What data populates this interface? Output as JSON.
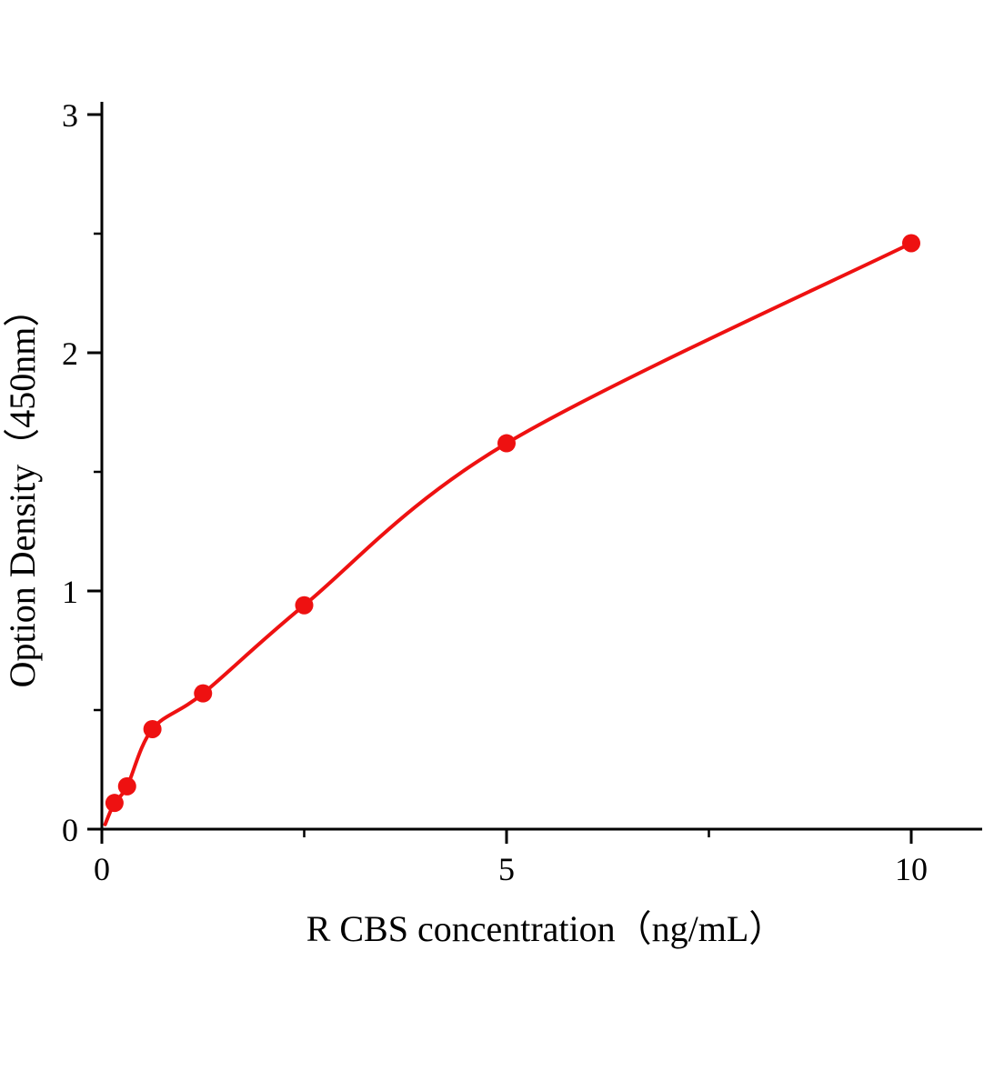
{
  "page": {
    "background": "#ffffff"
  },
  "chart_data": {
    "type": "scatter",
    "title": "",
    "xlabel": "R CBS  concentration（ng/mL）",
    "ylabel": "Option Density（450nm）",
    "x": [
      0.156,
      0.312,
      0.625,
      1.25,
      2.5,
      5,
      10
    ],
    "y": [
      0.11,
      0.18,
      0.42,
      0.57,
      0.94,
      1.62,
      2.46
    ],
    "curve_start": [
      0.04,
      0.02
    ],
    "xlim": [
      0,
      10.9
    ],
    "ylim": [
      0,
      3
    ],
    "x_major_ticks": [
      0,
      5,
      10
    ],
    "x_minor_ticks": [
      2.5,
      7.5
    ],
    "y_major_ticks": [
      0,
      1,
      2,
      3
    ],
    "y_minor_ticks": [
      0.5,
      1.5,
      2.5
    ],
    "legend": "none",
    "grid": "off",
    "accent_color": "#ee1111",
    "axis_color": "#000000",
    "marker_radius": 10,
    "curve_width": 4
  }
}
